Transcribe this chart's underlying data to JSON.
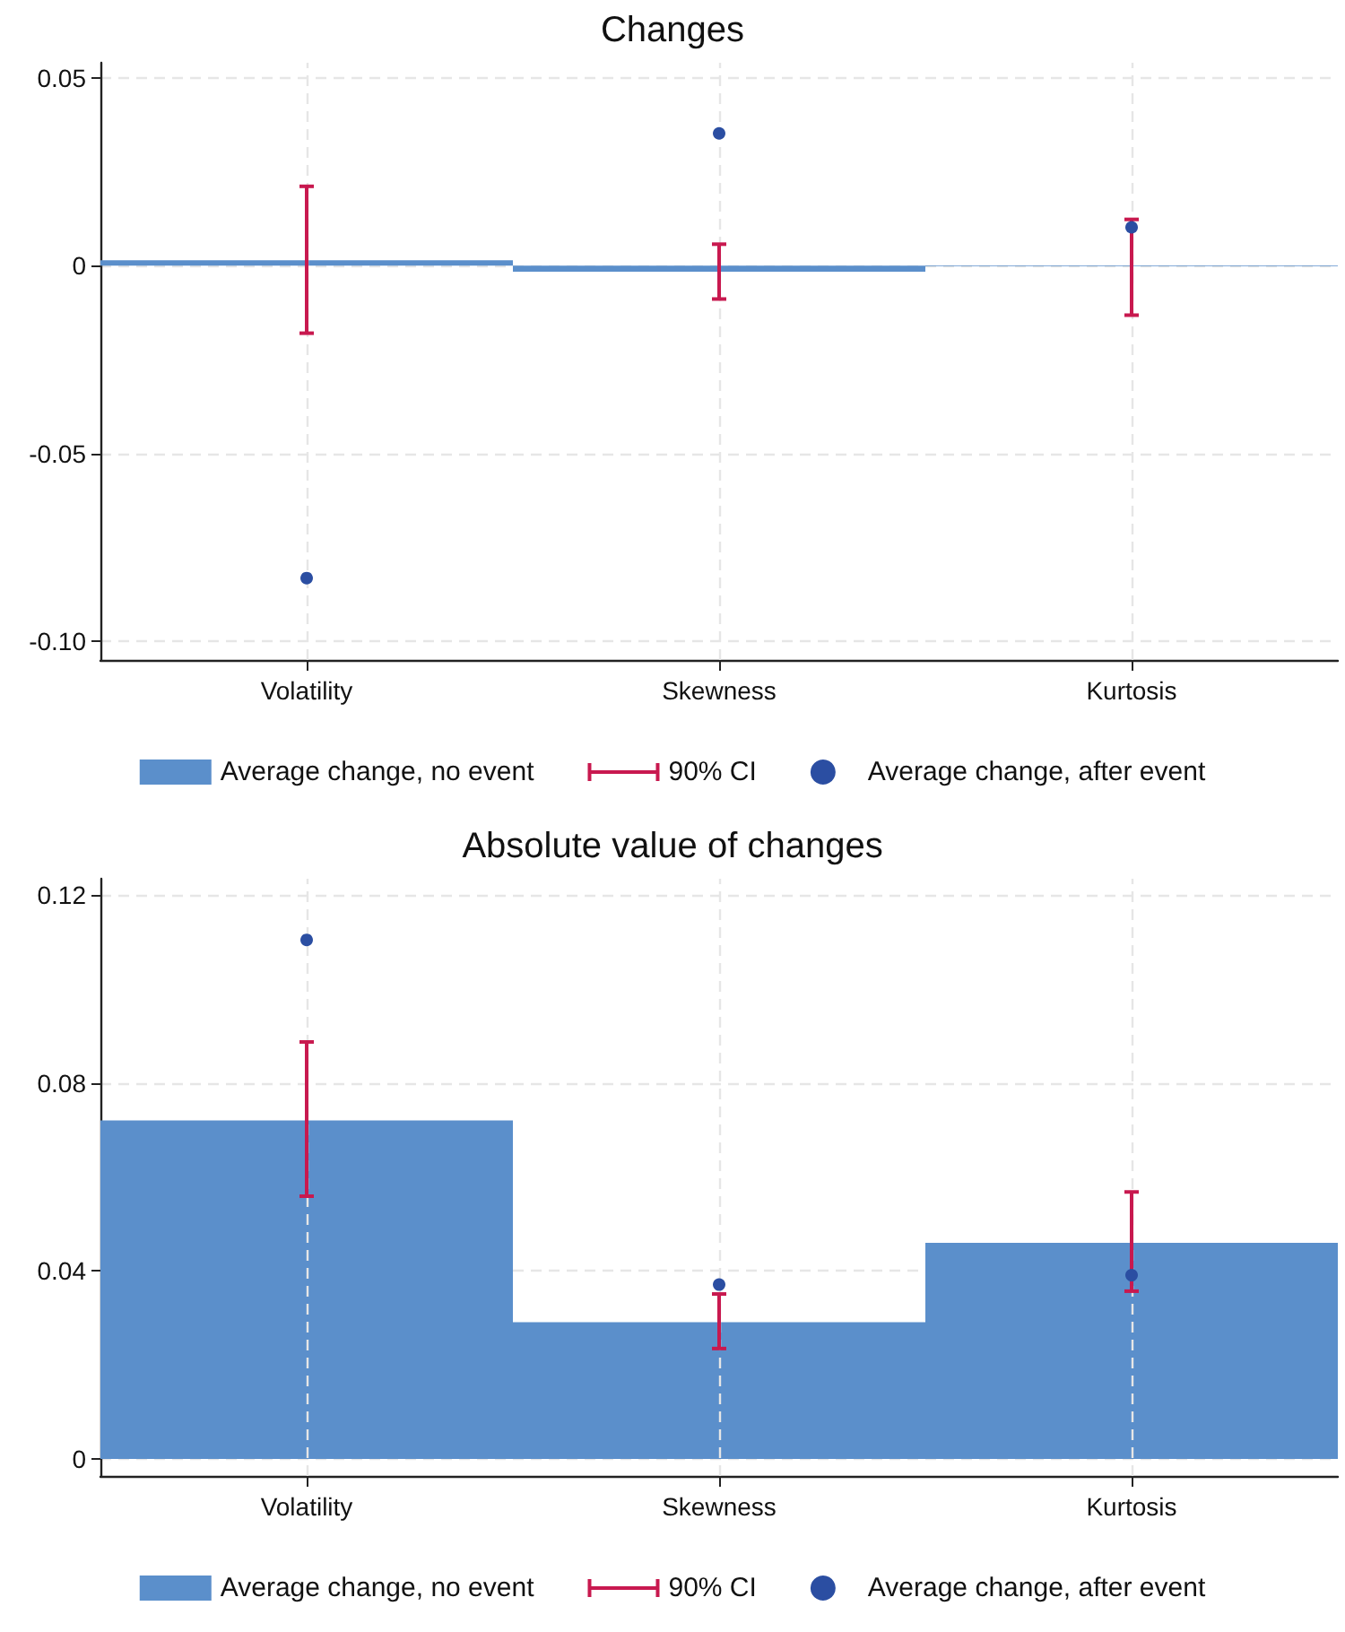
{
  "chart_data": [
    {
      "type": "bar",
      "title": "Changes",
      "categories": [
        "Volatility",
        "Skewness",
        "Kurtosis"
      ],
      "ylim": [
        -0.105,
        0.054
      ],
      "yticks": [
        {
          "value": 0.05,
          "label": "0.05"
        },
        {
          "value": 0,
          "label": "0"
        },
        {
          "value": -0.05,
          "label": "-0.05"
        },
        {
          "value": -0.1,
          "label": "-0.10"
        }
      ],
      "grid": true,
      "legend": "bottom",
      "series": [
        {
          "name": "Average change, no event",
          "color": "#5b8fcb",
          "values": [
            0.0014,
            -0.0016,
            -0.0002
          ],
          "errors": [
            [
              -0.018,
              0.0211
            ],
            [
              -0.0089,
              0.0057
            ],
            [
              -0.0132,
              0.0123
            ]
          ]
        },
        {
          "name": "90% CI",
          "type": "line",
          "color": "#c8194f",
          "values": [
            null,
            null,
            null
          ]
        },
        {
          "name": "Average change, after event",
          "type": "scatter",
          "marker": "circle",
          "color": "#2b4ea2",
          "values": [
            -0.0832,
            0.0352,
            0.0102
          ]
        }
      ]
    },
    {
      "type": "bar",
      "title": "Absolute value of changes",
      "categories": [
        "Volatility",
        "Skewness",
        "Kurtosis"
      ],
      "ylim": [
        -0.0036,
        0.1234
      ],
      "yticks": [
        {
          "value": 0.12,
          "label": "0.12"
        },
        {
          "value": 0.08,
          "label": "0.08"
        },
        {
          "value": 0.04,
          "label": "0.04"
        },
        {
          "value": 0,
          "label": "0"
        }
      ],
      "grid": true,
      "legend": "bottom",
      "series": [
        {
          "name": "Average change, no event",
          "color": "#5b8fcb",
          "values": [
            0.072,
            0.0291,
            0.046
          ],
          "errors": [
            [
              0.0559,
              0.0887
            ],
            [
              0.0235,
              0.0351
            ],
            [
              0.0357,
              0.0568
            ]
          ]
        },
        {
          "name": "90% CI",
          "type": "line",
          "color": "#c8194f",
          "values": [
            null,
            null,
            null
          ]
        },
        {
          "name": "Average change, after event",
          "type": "scatter",
          "marker": "circle",
          "color": "#2b4ea2",
          "values": [
            0.1104,
            0.0371,
            0.0391
          ]
        }
      ]
    }
  ]
}
